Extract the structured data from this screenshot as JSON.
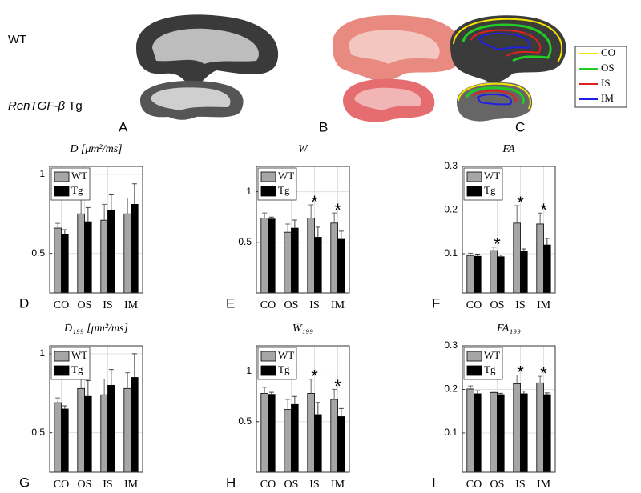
{
  "row_labels": {
    "wt": "WT",
    "tg_gene": "RenTGF-β",
    "tg_suffix": "Tg"
  },
  "image_panels": [
    "A",
    "B",
    "C"
  ],
  "roi_legend": [
    {
      "name": "CO",
      "color": "#f2e600"
    },
    {
      "name": "OS",
      "color": "#22cc22"
    },
    {
      "name": "IS",
      "color": "#e02020"
    },
    {
      "name": "IM",
      "color": "#2020e0"
    }
  ],
  "chart_data": [
    {
      "type": "bar",
      "panel_label": "D",
      "title": "D [μm²/ms]",
      "categories": [
        "CO",
        "OS",
        "IS",
        "IM"
      ],
      "ylim": [
        0.25,
        1.05
      ],
      "yticks": [
        0.5,
        1
      ],
      "grid": true,
      "legend": "upper left",
      "significance_marker": "*",
      "significant": [
        false,
        false,
        false,
        false
      ],
      "series": [
        {
          "name": "WT",
          "color": "#a6a6a6",
          "values": [
            0.66,
            0.75,
            0.71,
            0.75
          ],
          "errors": [
            0.03,
            0.1,
            0.1,
            0.1
          ]
        },
        {
          "name": "Tg",
          "color": "#000000",
          "values": [
            0.62,
            0.7,
            0.77,
            0.81
          ],
          "errors": [
            0.03,
            0.09,
            0.1,
            0.13
          ]
        }
      ]
    },
    {
      "type": "bar",
      "panel_label": "E",
      "title": "W",
      "categories": [
        "CO",
        "OS",
        "IS",
        "IM"
      ],
      "ylim": [
        0,
        1.25
      ],
      "yticks": [
        0.5,
        1
      ],
      "grid": true,
      "legend": "upper left",
      "significance_marker": "*",
      "significant": [
        false,
        false,
        true,
        true
      ],
      "series": [
        {
          "name": "WT",
          "color": "#a6a6a6",
          "values": [
            0.74,
            0.6,
            0.74,
            0.69
          ],
          "errors": [
            0.05,
            0.08,
            0.13,
            0.1
          ]
        },
        {
          "name": "Tg",
          "color": "#000000",
          "values": [
            0.73,
            0.64,
            0.55,
            0.53
          ],
          "errors": [
            0.02,
            0.08,
            0.1,
            0.08
          ]
        }
      ]
    },
    {
      "type": "bar",
      "panel_label": "F",
      "title": "FA",
      "categories": [
        "CO",
        "OS",
        "IS",
        "IM"
      ],
      "ylim": [
        0.01,
        0.3
      ],
      "yticks": [
        0.1,
        0.2,
        0.3
      ],
      "grid": true,
      "legend": "upper left",
      "significance_marker": "*",
      "significant": [
        false,
        true,
        true,
        true
      ],
      "series": [
        {
          "name": "WT",
          "color": "#a6a6a6",
          "values": [
            0.096,
            0.107,
            0.17,
            0.168
          ],
          "errors": [
            0.005,
            0.008,
            0.04,
            0.025
          ]
        },
        {
          "name": "Tg",
          "color": "#000000",
          "values": [
            0.094,
            0.093,
            0.106,
            0.12
          ],
          "errors": [
            0.005,
            0.004,
            0.005,
            0.015
          ]
        }
      ]
    },
    {
      "type": "bar",
      "panel_label": "G",
      "title": "D̄₁₉₉ [μm²/ms]",
      "categories": [
        "CO",
        "OS",
        "IS",
        "IM"
      ],
      "ylim": [
        0.25,
        1.05
      ],
      "yticks": [
        0.5,
        1
      ],
      "grid": true,
      "legend": "upper left",
      "significance_marker": "*",
      "significant": [
        false,
        false,
        false,
        false
      ],
      "series": [
        {
          "name": "WT",
          "color": "#a6a6a6",
          "values": [
            0.69,
            0.78,
            0.74,
            0.78
          ],
          "errors": [
            0.03,
            0.1,
            0.1,
            0.1
          ]
        },
        {
          "name": "Tg",
          "color": "#000000",
          "values": [
            0.65,
            0.73,
            0.8,
            0.85
          ],
          "errors": [
            0.02,
            0.1,
            0.1,
            0.15
          ]
        }
      ]
    },
    {
      "type": "bar",
      "panel_label": "H",
      "title": "W̄₁₉₉",
      "categories": [
        "CO",
        "OS",
        "IS",
        "IM"
      ],
      "ylim": [
        0,
        1.25
      ],
      "yticks": [
        0.5,
        1
      ],
      "grid": true,
      "legend": "upper left",
      "significance_marker": "*",
      "significant": [
        false,
        false,
        true,
        true
      ],
      "series": [
        {
          "name": "WT",
          "color": "#a6a6a6",
          "values": [
            0.78,
            0.62,
            0.78,
            0.72
          ],
          "errors": [
            0.06,
            0.1,
            0.14,
            0.1
          ]
        },
        {
          "name": "Tg",
          "color": "#000000",
          "values": [
            0.77,
            0.67,
            0.57,
            0.55
          ],
          "errors": [
            0.02,
            0.08,
            0.12,
            0.08
          ]
        }
      ]
    },
    {
      "type": "bar",
      "panel_label": "I",
      "title": "FA₁₉₉",
      "categories": [
        "CO",
        "OS",
        "IS",
        "IM"
      ],
      "ylim": [
        0.01,
        0.3
      ],
      "yticks": [
        0.1,
        0.2,
        0.3
      ],
      "grid": true,
      "legend": "upper left",
      "significance_marker": "*",
      "significant": [
        false,
        false,
        true,
        true
      ],
      "series": [
        {
          "name": "WT",
          "color": "#a6a6a6",
          "values": [
            0.201,
            0.193,
            0.213,
            0.215
          ],
          "errors": [
            0.007,
            0.003,
            0.02,
            0.015
          ]
        },
        {
          "name": "Tg",
          "color": "#000000",
          "values": [
            0.19,
            0.188,
            0.19,
            0.188
          ],
          "errors": [
            0.007,
            0.003,
            0.006,
            0.004
          ]
        }
      ]
    }
  ]
}
